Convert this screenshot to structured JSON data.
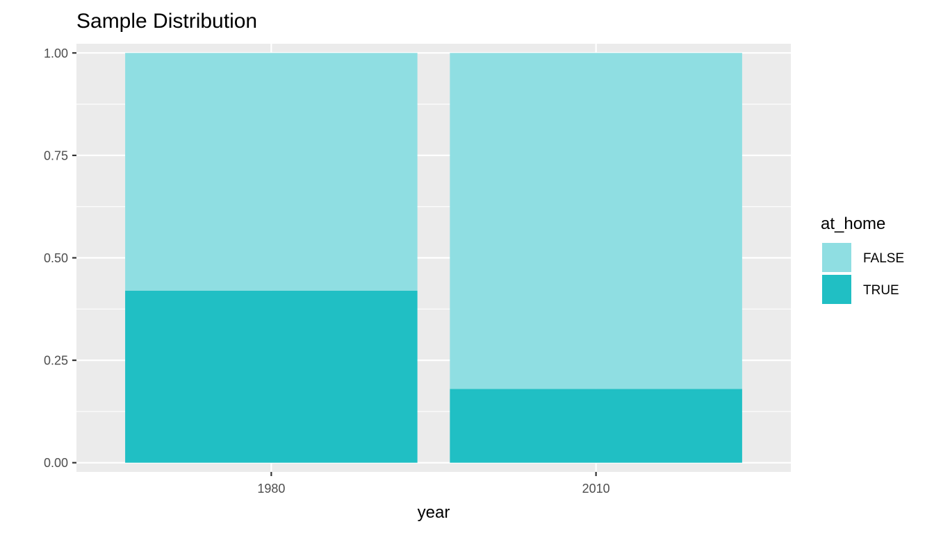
{
  "chart_data": {
    "type": "bar",
    "stacked": true,
    "title": "Sample Distribution",
    "xlabel": "year",
    "ylabel": "",
    "categories": [
      "1980",
      "2010"
    ],
    "ylim": [
      -0.0225,
      1.0225
    ],
    "yticks": [
      0.0,
      0.25,
      0.5,
      0.75,
      1.0
    ],
    "ytick_labels": [
      "0.00",
      "0.25",
      "0.50",
      "0.75",
      "1.00"
    ],
    "series": [
      {
        "name": "TRUE",
        "values": [
          0.42,
          0.18
        ],
        "color": "#20BFC4"
      },
      {
        "name": "FALSE",
        "values": [
          0.58,
          0.82
        ],
        "color": "#8FDEE2"
      }
    ],
    "legend": {
      "title": "at_home",
      "placement": "right",
      "entries": [
        {
          "label": "FALSE",
          "color": "#8FDEE2"
        },
        {
          "label": "TRUE",
          "color": "#20BFC4"
        }
      ]
    },
    "grid": true,
    "panel_background": "#EBEBEB",
    "grid_color": "#FFFFFF"
  }
}
